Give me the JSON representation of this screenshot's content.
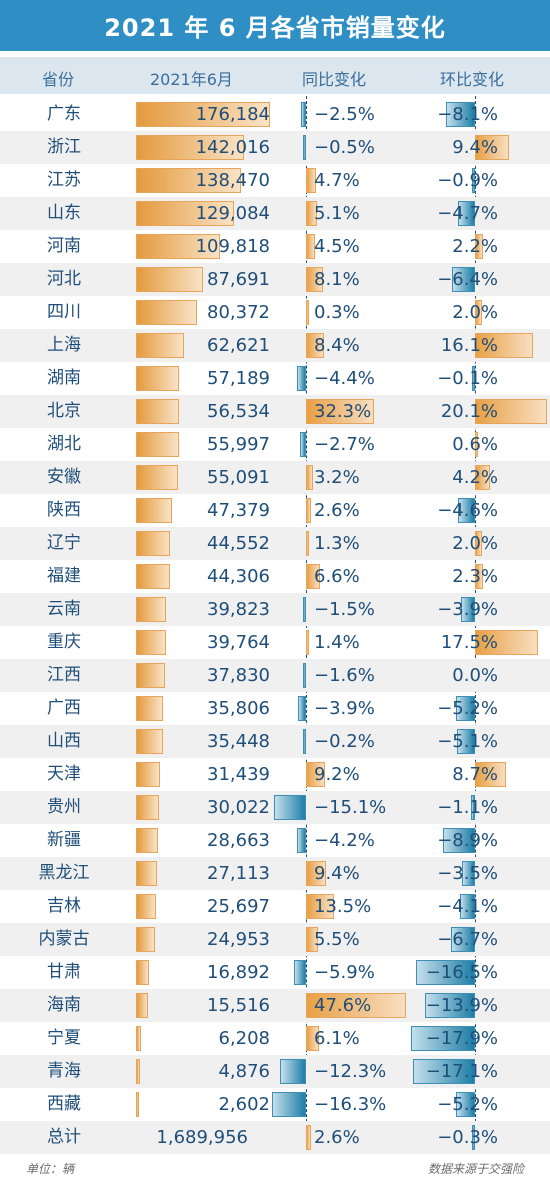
{
  "title": "2021 年 6 月各省市销量变化",
  "headers": {
    "province": "省份",
    "sales": "2021年6月",
    "yoy": "同比变化",
    "mom": "环比变化"
  },
  "chart_data": {
    "type": "table",
    "rows": [
      {
        "province": "广东",
        "sales": 176184,
        "sales_text": "176,184",
        "yoy": -2.5,
        "yoy_text": "−2.5%",
        "mom": -8.1,
        "mom_text": "−8.1%"
      },
      {
        "province": "浙江",
        "sales": 142016,
        "sales_text": "142,016",
        "yoy": -0.5,
        "yoy_text": "−0.5%",
        "mom": 9.4,
        "mom_text": "9.4%"
      },
      {
        "province": "江苏",
        "sales": 138470,
        "sales_text": "138,470",
        "yoy": 4.7,
        "yoy_text": "4.7%",
        "mom": -0.9,
        "mom_text": "−0.9%"
      },
      {
        "province": "山东",
        "sales": 129084,
        "sales_text": "129,084",
        "yoy": 5.1,
        "yoy_text": "5.1%",
        "mom": -4.7,
        "mom_text": "−4.7%"
      },
      {
        "province": "河南",
        "sales": 109818,
        "sales_text": "109,818",
        "yoy": 4.5,
        "yoy_text": "4.5%",
        "mom": 2.2,
        "mom_text": "2.2%"
      },
      {
        "province": "河北",
        "sales": 87691,
        "sales_text": "87,691",
        "yoy": 8.1,
        "yoy_text": "8.1%",
        "mom": -6.4,
        "mom_text": "−6.4%"
      },
      {
        "province": "四川",
        "sales": 80372,
        "sales_text": "80,372",
        "yoy": 0.3,
        "yoy_text": "0.3%",
        "mom": 2.0,
        "mom_text": "2.0%"
      },
      {
        "province": "上海",
        "sales": 62621,
        "sales_text": "62,621",
        "yoy": 8.4,
        "yoy_text": "8.4%",
        "mom": 16.1,
        "mom_text": "16.1%"
      },
      {
        "province": "湖南",
        "sales": 57189,
        "sales_text": "57,189",
        "yoy": -4.4,
        "yoy_text": "−4.4%",
        "mom": -0.1,
        "mom_text": "−0.1%"
      },
      {
        "province": "北京",
        "sales": 56534,
        "sales_text": "56,534",
        "yoy": 32.3,
        "yoy_text": "32.3%",
        "mom": 20.1,
        "mom_text": "20.1%"
      },
      {
        "province": "湖北",
        "sales": 55997,
        "sales_text": "55,997",
        "yoy": -2.7,
        "yoy_text": "−2.7%",
        "mom": 0.6,
        "mom_text": "0.6%"
      },
      {
        "province": "安徽",
        "sales": 55091,
        "sales_text": "55,091",
        "yoy": 3.2,
        "yoy_text": "3.2%",
        "mom": 4.2,
        "mom_text": "4.2%"
      },
      {
        "province": "陕西",
        "sales": 47379,
        "sales_text": "47,379",
        "yoy": 2.6,
        "yoy_text": "2.6%",
        "mom": -4.6,
        "mom_text": "−4.6%"
      },
      {
        "province": "辽宁",
        "sales": 44552,
        "sales_text": "44,552",
        "yoy": 1.3,
        "yoy_text": "1.3%",
        "mom": 2.0,
        "mom_text": "2.0%"
      },
      {
        "province": "福建",
        "sales": 44306,
        "sales_text": "44,306",
        "yoy": 6.6,
        "yoy_text": "6.6%",
        "mom": 2.3,
        "mom_text": "2.3%"
      },
      {
        "province": "云南",
        "sales": 39823,
        "sales_text": "39,823",
        "yoy": -1.5,
        "yoy_text": "−1.5%",
        "mom": -3.9,
        "mom_text": "−3.9%"
      },
      {
        "province": "重庆",
        "sales": 39764,
        "sales_text": "39,764",
        "yoy": 1.4,
        "yoy_text": "1.4%",
        "mom": 17.5,
        "mom_text": "17.5%"
      },
      {
        "province": "江西",
        "sales": 37830,
        "sales_text": "37,830",
        "yoy": -1.6,
        "yoy_text": "−1.6%",
        "mom": 0.0,
        "mom_text": "0.0%"
      },
      {
        "province": "广西",
        "sales": 35806,
        "sales_text": "35,806",
        "yoy": -3.9,
        "yoy_text": "−3.9%",
        "mom": -5.2,
        "mom_text": "−5.2%"
      },
      {
        "province": "山西",
        "sales": 35448,
        "sales_text": "35,448",
        "yoy": -0.2,
        "yoy_text": "−0.2%",
        "mom": -5.1,
        "mom_text": "−5.1%"
      },
      {
        "province": "天津",
        "sales": 31439,
        "sales_text": "31,439",
        "yoy": 9.2,
        "yoy_text": "9.2%",
        "mom": 8.7,
        "mom_text": "8.7%"
      },
      {
        "province": "贵州",
        "sales": 30022,
        "sales_text": "30,022",
        "yoy": -15.1,
        "yoy_text": "−15.1%",
        "mom": -1.1,
        "mom_text": "−1.1%"
      },
      {
        "province": "新疆",
        "sales": 28663,
        "sales_text": "28,663",
        "yoy": -4.2,
        "yoy_text": "−4.2%",
        "mom": -8.9,
        "mom_text": "−8.9%"
      },
      {
        "province": "黑龙江",
        "sales": 27113,
        "sales_text": "27,113",
        "yoy": 9.4,
        "yoy_text": "9.4%",
        "mom": -3.5,
        "mom_text": "−3.5%"
      },
      {
        "province": "吉林",
        "sales": 25697,
        "sales_text": "25,697",
        "yoy": 13.5,
        "yoy_text": "13.5%",
        "mom": -4.1,
        "mom_text": "−4.1%"
      },
      {
        "province": "内蒙古",
        "sales": 24953,
        "sales_text": "24,953",
        "yoy": 5.5,
        "yoy_text": "5.5%",
        "mom": -6.7,
        "mom_text": "−6.7%"
      },
      {
        "province": "甘肃",
        "sales": 16892,
        "sales_text": "16,892",
        "yoy": -5.9,
        "yoy_text": "−5.9%",
        "mom": -16.5,
        "mom_text": "−16.5%"
      },
      {
        "province": "海南",
        "sales": 15516,
        "sales_text": "15,516",
        "yoy": 47.6,
        "yoy_text": "47.6%",
        "mom": -13.9,
        "mom_text": "−13.9%"
      },
      {
        "province": "宁夏",
        "sales": 6208,
        "sales_text": "6,208",
        "yoy": 6.1,
        "yoy_text": "6.1%",
        "mom": -17.9,
        "mom_text": "−17.9%"
      },
      {
        "province": "青海",
        "sales": 4876,
        "sales_text": "4,876",
        "yoy": -12.3,
        "yoy_text": "−12.3%",
        "mom": -17.1,
        "mom_text": "−17.1%"
      },
      {
        "province": "西藏",
        "sales": 2602,
        "sales_text": "2,602",
        "yoy": -16.3,
        "yoy_text": "−16.3%",
        "mom": -5.2,
        "mom_text": "−5.2%"
      }
    ],
    "total": {
      "province": "总计",
      "sales": 1689956,
      "sales_text": "1,689,956",
      "yoy": 2.6,
      "yoy_text": "2.6%",
      "mom": -0.3,
      "mom_text": "−0.3%"
    }
  },
  "footer": {
    "unit": "单位：辆",
    "source": "数据来源于交强险"
  },
  "colors": {
    "title_bg": "#2f8fc4",
    "positive": "#e8a045",
    "negative": "#1e7ea6",
    "text": "#1f4e79"
  }
}
